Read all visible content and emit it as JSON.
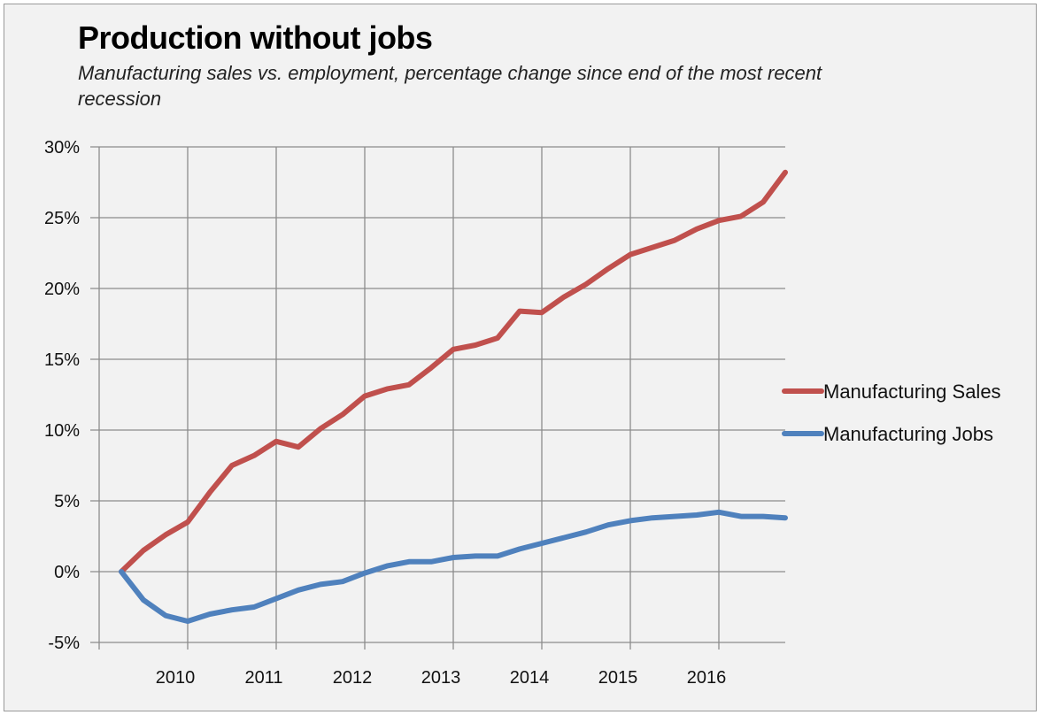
{
  "chart_data": {
    "type": "line",
    "title": "Production without jobs",
    "subtitle": "Manufacturing sales vs. employment, percentage change since end of the most recent recession",
    "xlabel": "",
    "ylabel": "",
    "x": [
      2009.25,
      2009.5,
      2009.75,
      2010.0,
      2010.25,
      2010.5,
      2010.75,
      2011.0,
      2011.25,
      2011.5,
      2011.75,
      2012.0,
      2012.25,
      2012.5,
      2012.75,
      2013.0,
      2013.25,
      2013.5,
      2013.75,
      2014.0,
      2014.25,
      2014.5,
      2014.75,
      2015.0,
      2015.25,
      2015.5,
      2015.75,
      2016.0,
      2016.25,
      2016.5,
      2016.75
    ],
    "xlim": [
      2009.0,
      2016.75
    ],
    "ylim": [
      -5,
      30
    ],
    "x_ticks": [
      2010,
      2011,
      2012,
      2013,
      2014,
      2015,
      2016
    ],
    "x_tick_labels": [
      "2010",
      "2011",
      "2012",
      "2013",
      "2014",
      "2015",
      "2016"
    ],
    "y_ticks": [
      -5,
      0,
      5,
      10,
      15,
      20,
      25,
      30
    ],
    "y_tick_labels": [
      "-5%",
      "0%",
      "5%",
      "10%",
      "15%",
      "20%",
      "25%",
      "30%"
    ],
    "grid": true,
    "legend_position": "right",
    "series": [
      {
        "name": "Manufacturing Sales",
        "color": "#c0504d",
        "values": [
          0.0,
          1.5,
          2.6,
          3.5,
          5.6,
          7.5,
          8.2,
          9.2,
          8.8,
          10.1,
          11.1,
          12.4,
          12.9,
          13.2,
          14.4,
          15.7,
          16.0,
          16.5,
          18.4,
          18.3,
          19.4,
          20.3,
          21.4,
          22.4,
          22.9,
          23.4,
          24.2,
          24.8,
          25.1,
          26.1,
          28.2
        ]
      },
      {
        "name": "Manufacturing Jobs",
        "color": "#4f81bd",
        "values": [
          0.0,
          -2.0,
          -3.1,
          -3.5,
          -3.0,
          -2.7,
          -2.5,
          -1.9,
          -1.3,
          -0.9,
          -0.7,
          -0.1,
          0.4,
          0.7,
          0.7,
          1.0,
          1.1,
          1.1,
          1.6,
          2.0,
          2.4,
          2.8,
          3.3,
          3.6,
          3.8,
          3.9,
          4.0,
          4.2,
          3.9,
          3.9,
          3.8
        ]
      }
    ]
  }
}
